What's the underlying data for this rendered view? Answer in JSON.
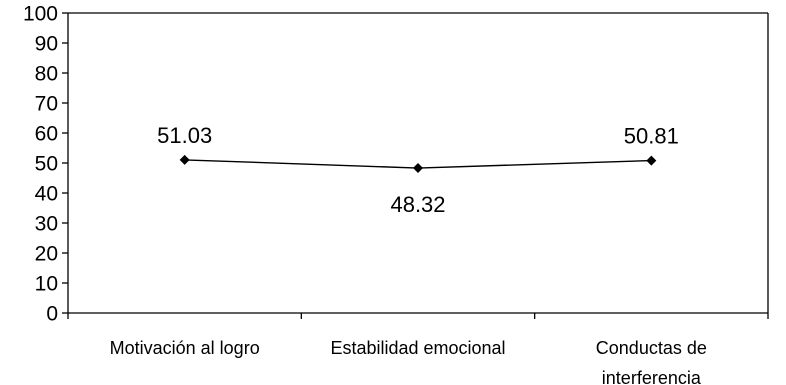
{
  "chart_data": {
    "type": "line",
    "categories": [
      [
        "Motivación al logro"
      ],
      [
        "Estabilidad emocional"
      ],
      [
        "Conductas de",
        "interferencia"
      ]
    ],
    "series": [
      {
        "values": [
          51.03,
          48.32,
          50.81
        ],
        "labels": [
          "51.03",
          "48.32",
          "50.81"
        ],
        "label_positions": [
          "above",
          "below",
          "above"
        ]
      }
    ],
    "y_ticks": [
      0,
      10,
      20,
      30,
      40,
      50,
      60,
      70,
      80,
      90,
      100
    ],
    "ylim": [
      0,
      100
    ],
    "grid": false,
    "legend": "none",
    "colors": {
      "line": "#000000",
      "marker": "#000000",
      "axis": "#000000"
    }
  }
}
